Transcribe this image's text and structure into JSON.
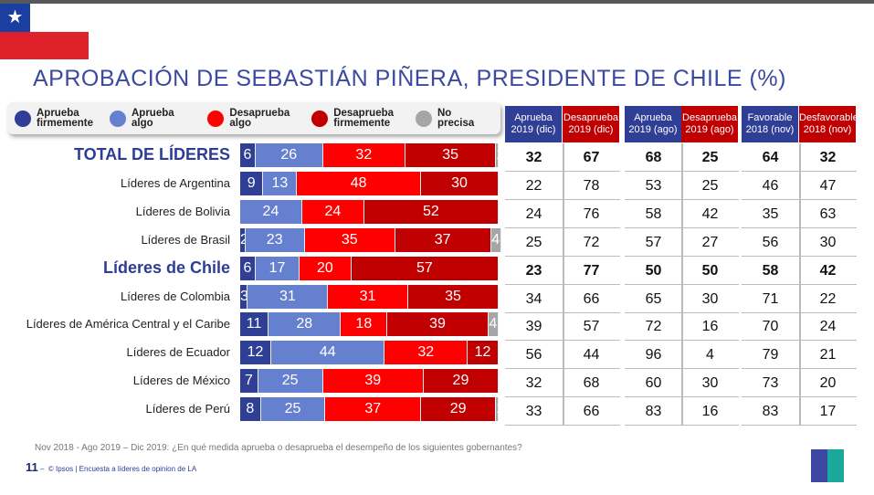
{
  "title": "APROBACIÓN DE SEBASTIÁN PIÑERA, PRESIDENTE DE CHILE (%)",
  "colors": {
    "aprueba_firmemente": "#2f3f96",
    "aprueba_algo": "#6680d0",
    "desaprueba_algo": "#ff0000",
    "desaprueba_firmemente": "#c00000",
    "no_precisa": "#a6a6a6"
  },
  "legend": [
    "Aprueba firmemente",
    "Aprueba algo",
    "Desaprueba algo",
    "Desaprueba firmemente",
    "No precisa"
  ],
  "chart_data": {
    "type": "bar",
    "stacked": true,
    "orientation": "horizontal",
    "categories": [
      "TOTAL DE LÍDERES",
      "Líderes de Argentina",
      "Líderes de Bolivia",
      "Líderes de Brasil",
      "Líderes de Chile",
      "Líderes de Colombia",
      "Líderes de América Central y el Caribe",
      "Líderes de Ecuador",
      "Líderes de México",
      "Líderes de Perú"
    ],
    "highlighted": [
      "TOTAL DE LÍDERES",
      "Líderes de Chile"
    ],
    "series": [
      {
        "name": "Aprueba firmemente",
        "values": [
          6,
          9,
          0,
          2,
          6,
          3,
          11,
          12,
          7,
          8
        ]
      },
      {
        "name": "Aprueba algo",
        "values": [
          26,
          13,
          24,
          23,
          17,
          31,
          28,
          44,
          25,
          25
        ]
      },
      {
        "name": "Desaprueba algo",
        "values": [
          32,
          48,
          24,
          35,
          20,
          31,
          18,
          32,
          39,
          37
        ]
      },
      {
        "name": "Desaprueba firmemente",
        "values": [
          35,
          30,
          52,
          37,
          57,
          35,
          39,
          12,
          29,
          29
        ]
      },
      {
        "name": "No precisa",
        "values": [
          1,
          0,
          0,
          4,
          0,
          0,
          4,
          0,
          0,
          1
        ]
      }
    ],
    "xlim": [
      0,
      100
    ]
  },
  "table": {
    "headers": [
      [
        "Aprueba",
        "2019 (dic)"
      ],
      [
        "Desaprueba",
        "2019 (dic)"
      ],
      [
        "Aprueba",
        "2019 (ago)"
      ],
      [
        "Desaprueba",
        "2019 (ago)"
      ],
      [
        "Favorable",
        "2018 (nov)"
      ],
      [
        "Desfavorable",
        "2018 (nov)"
      ]
    ],
    "header_colors": [
      "#2f3f96",
      "#c00000",
      "#2f3f96",
      "#c00000",
      "#2f3f96",
      "#c00000"
    ],
    "rows": [
      [
        "32",
        "67",
        "68",
        "25",
        "64",
        "32"
      ],
      [
        "22",
        "78",
        "53",
        "25",
        "46",
        "47"
      ],
      [
        "24",
        "76",
        "58",
        "42",
        "35",
        "63"
      ],
      [
        "25",
        "72",
        "57",
        "27",
        "56",
        "30"
      ],
      [
        "23",
        "77",
        "50",
        "50",
        "58",
        "42"
      ],
      [
        "34",
        "66",
        "65",
        "30",
        "71",
        "22"
      ],
      [
        "39",
        "57",
        "72",
        "16",
        "70",
        "24"
      ],
      [
        "56",
        "44",
        "96",
        "4",
        "79",
        "21"
      ],
      [
        "32",
        "68",
        "60",
        "30",
        "73",
        "20"
      ],
      [
        "33",
        "66",
        "83",
        "16",
        "83",
        "17"
      ]
    ]
  },
  "footer": {
    "question": "Nov 2018 - Ago 2019 – Dic 2019: ¿En qué medida aprueba o desaprueba el desempeño de los siguientes gobernantes?",
    "page": "11",
    "dash": "–",
    "source": "© Ipsos | Encuesta a líderes de opinion de LA",
    "logo": "Ipsos"
  }
}
